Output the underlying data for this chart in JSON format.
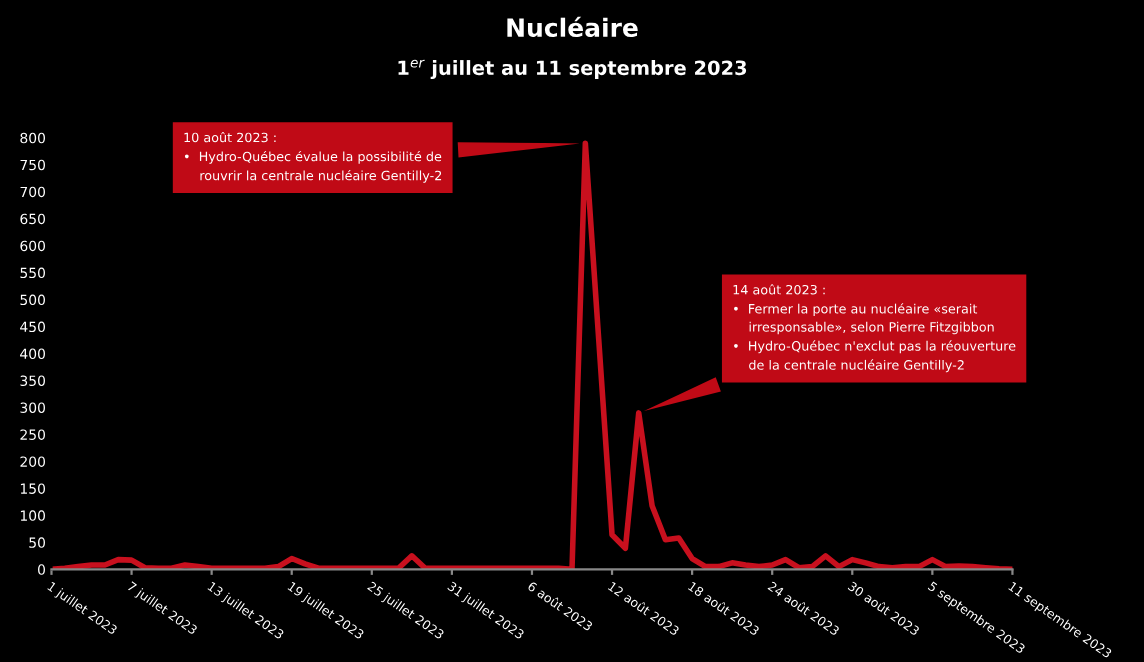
{
  "chart_data": {
    "type": "line",
    "title": "Nucléaire",
    "subtitle": "1$^{er}$ juillet au 11 septembre 2023",
    "x": [
      "2023-07-01",
      "2023-07-02",
      "2023-07-03",
      "2023-07-04",
      "2023-07-05",
      "2023-07-06",
      "2023-07-07",
      "2023-07-08",
      "2023-07-09",
      "2023-07-10",
      "2023-07-11",
      "2023-07-12",
      "2023-07-13",
      "2023-07-14",
      "2023-07-15",
      "2023-07-16",
      "2023-07-17",
      "2023-07-18",
      "2023-07-19",
      "2023-07-20",
      "2023-07-21",
      "2023-07-22",
      "2023-07-23",
      "2023-07-24",
      "2023-07-25",
      "2023-07-26",
      "2023-07-27",
      "2023-07-28",
      "2023-07-29",
      "2023-07-30",
      "2023-07-31",
      "2023-08-01",
      "2023-08-02",
      "2023-08-03",
      "2023-08-04",
      "2023-08-05",
      "2023-08-06",
      "2023-08-07",
      "2023-08-08",
      "2023-08-09",
      "2023-08-10",
      "2023-08-11",
      "2023-08-12",
      "2023-08-13",
      "2023-08-14",
      "2023-08-15",
      "2023-08-16",
      "2023-08-17",
      "2023-08-18",
      "2023-08-19",
      "2023-08-20",
      "2023-08-21",
      "2023-08-22",
      "2023-08-23",
      "2023-08-24",
      "2023-08-25",
      "2023-08-26",
      "2023-08-27",
      "2023-08-28",
      "2023-08-29",
      "2023-08-30",
      "2023-08-31",
      "2023-09-01",
      "2023-09-02",
      "2023-09-03",
      "2023-09-04",
      "2023-09-05",
      "2023-09-06",
      "2023-09-07",
      "2023-09-08",
      "2023-09-09",
      "2023-09-10",
      "2023-09-11"
    ],
    "series": [
      {
        "color": "#c8101e",
        "values": [
          0,
          2,
          5,
          8,
          8,
          18,
          17,
          3,
          2,
          2,
          8,
          5,
          2,
          2,
          2,
          2,
          2,
          5,
          20,
          10,
          2,
          2,
          2,
          2,
          2,
          2,
          2,
          25,
          2,
          2,
          2,
          2,
          2,
          2,
          2,
          2,
          2,
          2,
          2,
          0,
          790,
          427,
          64,
          39,
          290,
          118,
          55,
          58,
          20,
          5,
          5,
          12,
          8,
          5,
          8,
          18,
          3,
          5,
          25,
          5,
          18,
          12,
          5,
          3,
          5,
          5,
          18,
          5,
          6,
          5,
          3,
          1,
          0
        ]
      }
    ],
    "xlim": [
      "2023-07-01",
      "2023-09-11"
    ],
    "xticks": [
      {
        "value": "2023-07-01",
        "label": "1 juillet 2023"
      },
      {
        "value": "2023-07-07",
        "label": "7 juillet 2023"
      },
      {
        "value": "2023-07-13",
        "label": "13 juillet 2023"
      },
      {
        "value": "2023-07-19",
        "label": "19 juillet 2023"
      },
      {
        "value": "2023-07-25",
        "label": "25 juillet 2023"
      },
      {
        "value": "2023-07-31",
        "label": "31 juillet 2023"
      },
      {
        "value": "2023-08-06",
        "label": "6 août 2023"
      },
      {
        "value": "2023-08-12",
        "label": "12 août 2023"
      },
      {
        "value": "2023-08-18",
        "label": "18 août 2023"
      },
      {
        "value": "2023-08-24",
        "label": "24 août 2023"
      },
      {
        "value": "2023-08-30",
        "label": "30 août 2023"
      },
      {
        "value": "2023-09-05",
        "label": "5 septembre 2023"
      },
      {
        "value": "2023-09-11",
        "label": "11 septembre 2023"
      }
    ],
    "ylim": [
      0,
      810
    ],
    "yticks": [
      0,
      50,
      100,
      150,
      200,
      250,
      300,
      350,
      400,
      450,
      500,
      550,
      600,
      650,
      700,
      750,
      800
    ],
    "grid": false,
    "legend": false,
    "marker": "none",
    "line_style": "solid",
    "annotations": [
      {
        "text": "10 août 2023 :\n•  Hydro-Québec évalue la possibilité de\n    rouvrir la centrale nucléaire Gentilly-2",
        "x": "2023-08-10",
        "y": 790
      },
      {
        "text": "14 août 2023 :\n•  Fermer la porte au nucléaire «serait\n    irresponsable», selon Pierre Fitzgibbon\n•  Hydro-Québec n'exclut pas la réouverture\n    de la centrale nucléaire Gentilly-2",
        "x": "2023-08-14",
        "y": 290
      }
    ]
  }
}
